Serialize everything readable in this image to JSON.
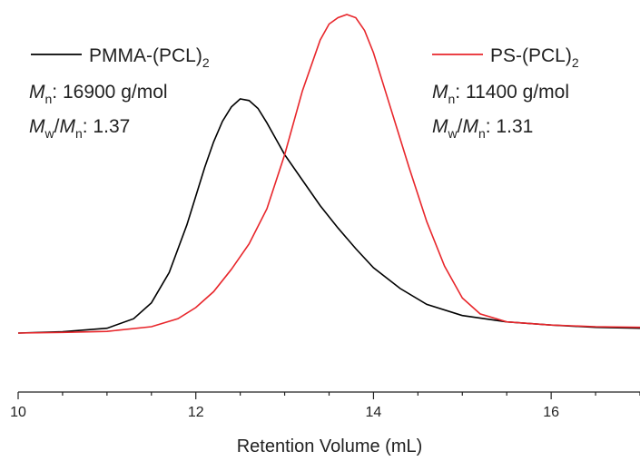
{
  "chart_data": {
    "type": "line",
    "title": "",
    "xlabel": "Retention Volume (mL)",
    "ylabel": "",
    "xlim": [
      10,
      17
    ],
    "ylim": [
      0,
      1
    ],
    "xticks": [
      10,
      12,
      14,
      16
    ],
    "x_minor_step": 0.5,
    "y_axis_visible": false,
    "grid": false,
    "series": [
      {
        "name": "PMMA-(PCL)",
        "name_subscript": "2",
        "color": "#000000",
        "Mn_label": "M",
        "Mn_label_sub": "n",
        "Mn_value": ": 16900 g/mol",
        "dispersity_label_a": "M",
        "dispersity_label_a_sub": "w",
        "dispersity_label_slash": "/",
        "dispersity_label_b": "M",
        "dispersity_label_b_sub": "n",
        "dispersity_value": ": 1.37",
        "x": [
          10.0,
          10.5,
          11.0,
          11.3,
          11.5,
          11.7,
          11.9,
          12.0,
          12.1,
          12.2,
          12.3,
          12.4,
          12.5,
          12.6,
          12.7,
          12.8,
          12.9,
          13.0,
          13.2,
          13.4,
          13.6,
          13.8,
          14.0,
          14.3,
          14.6,
          15.0,
          15.5,
          16.0,
          16.5,
          17.0
        ],
        "y": [
          0.0,
          0.004,
          0.015,
          0.045,
          0.095,
          0.19,
          0.34,
          0.43,
          0.52,
          0.6,
          0.665,
          0.71,
          0.735,
          0.73,
          0.705,
          0.66,
          0.61,
          0.56,
          0.48,
          0.4,
          0.33,
          0.265,
          0.205,
          0.14,
          0.09,
          0.055,
          0.035,
          0.025,
          0.018,
          0.015
        ]
      },
      {
        "name": "PS-(PCL)",
        "name_subscript": "2",
        "color": "#e8262b",
        "Mn_label": "M",
        "Mn_label_sub": "n",
        "Mn_value": ": 11400 g/mol",
        "dispersity_label_a": "M",
        "dispersity_label_a_sub": "w",
        "dispersity_label_slash": "/",
        "dispersity_label_b": "M",
        "dispersity_label_b_sub": "n",
        "dispersity_value": ": 1.31",
        "x": [
          10.0,
          10.5,
          11.0,
          11.5,
          11.8,
          12.0,
          12.2,
          12.4,
          12.6,
          12.8,
          13.0,
          13.2,
          13.4,
          13.5,
          13.6,
          13.7,
          13.8,
          13.9,
          14.0,
          14.1,
          14.2,
          14.4,
          14.6,
          14.8,
          15.0,
          15.2,
          15.5,
          16.0,
          16.5,
          17.0
        ],
        "y": [
          0.0,
          0.002,
          0.005,
          0.02,
          0.045,
          0.08,
          0.13,
          0.2,
          0.28,
          0.39,
          0.56,
          0.76,
          0.92,
          0.97,
          0.99,
          1.0,
          0.99,
          0.95,
          0.88,
          0.79,
          0.7,
          0.52,
          0.35,
          0.21,
          0.11,
          0.06,
          0.035,
          0.025,
          0.02,
          0.018
        ]
      }
    ]
  }
}
